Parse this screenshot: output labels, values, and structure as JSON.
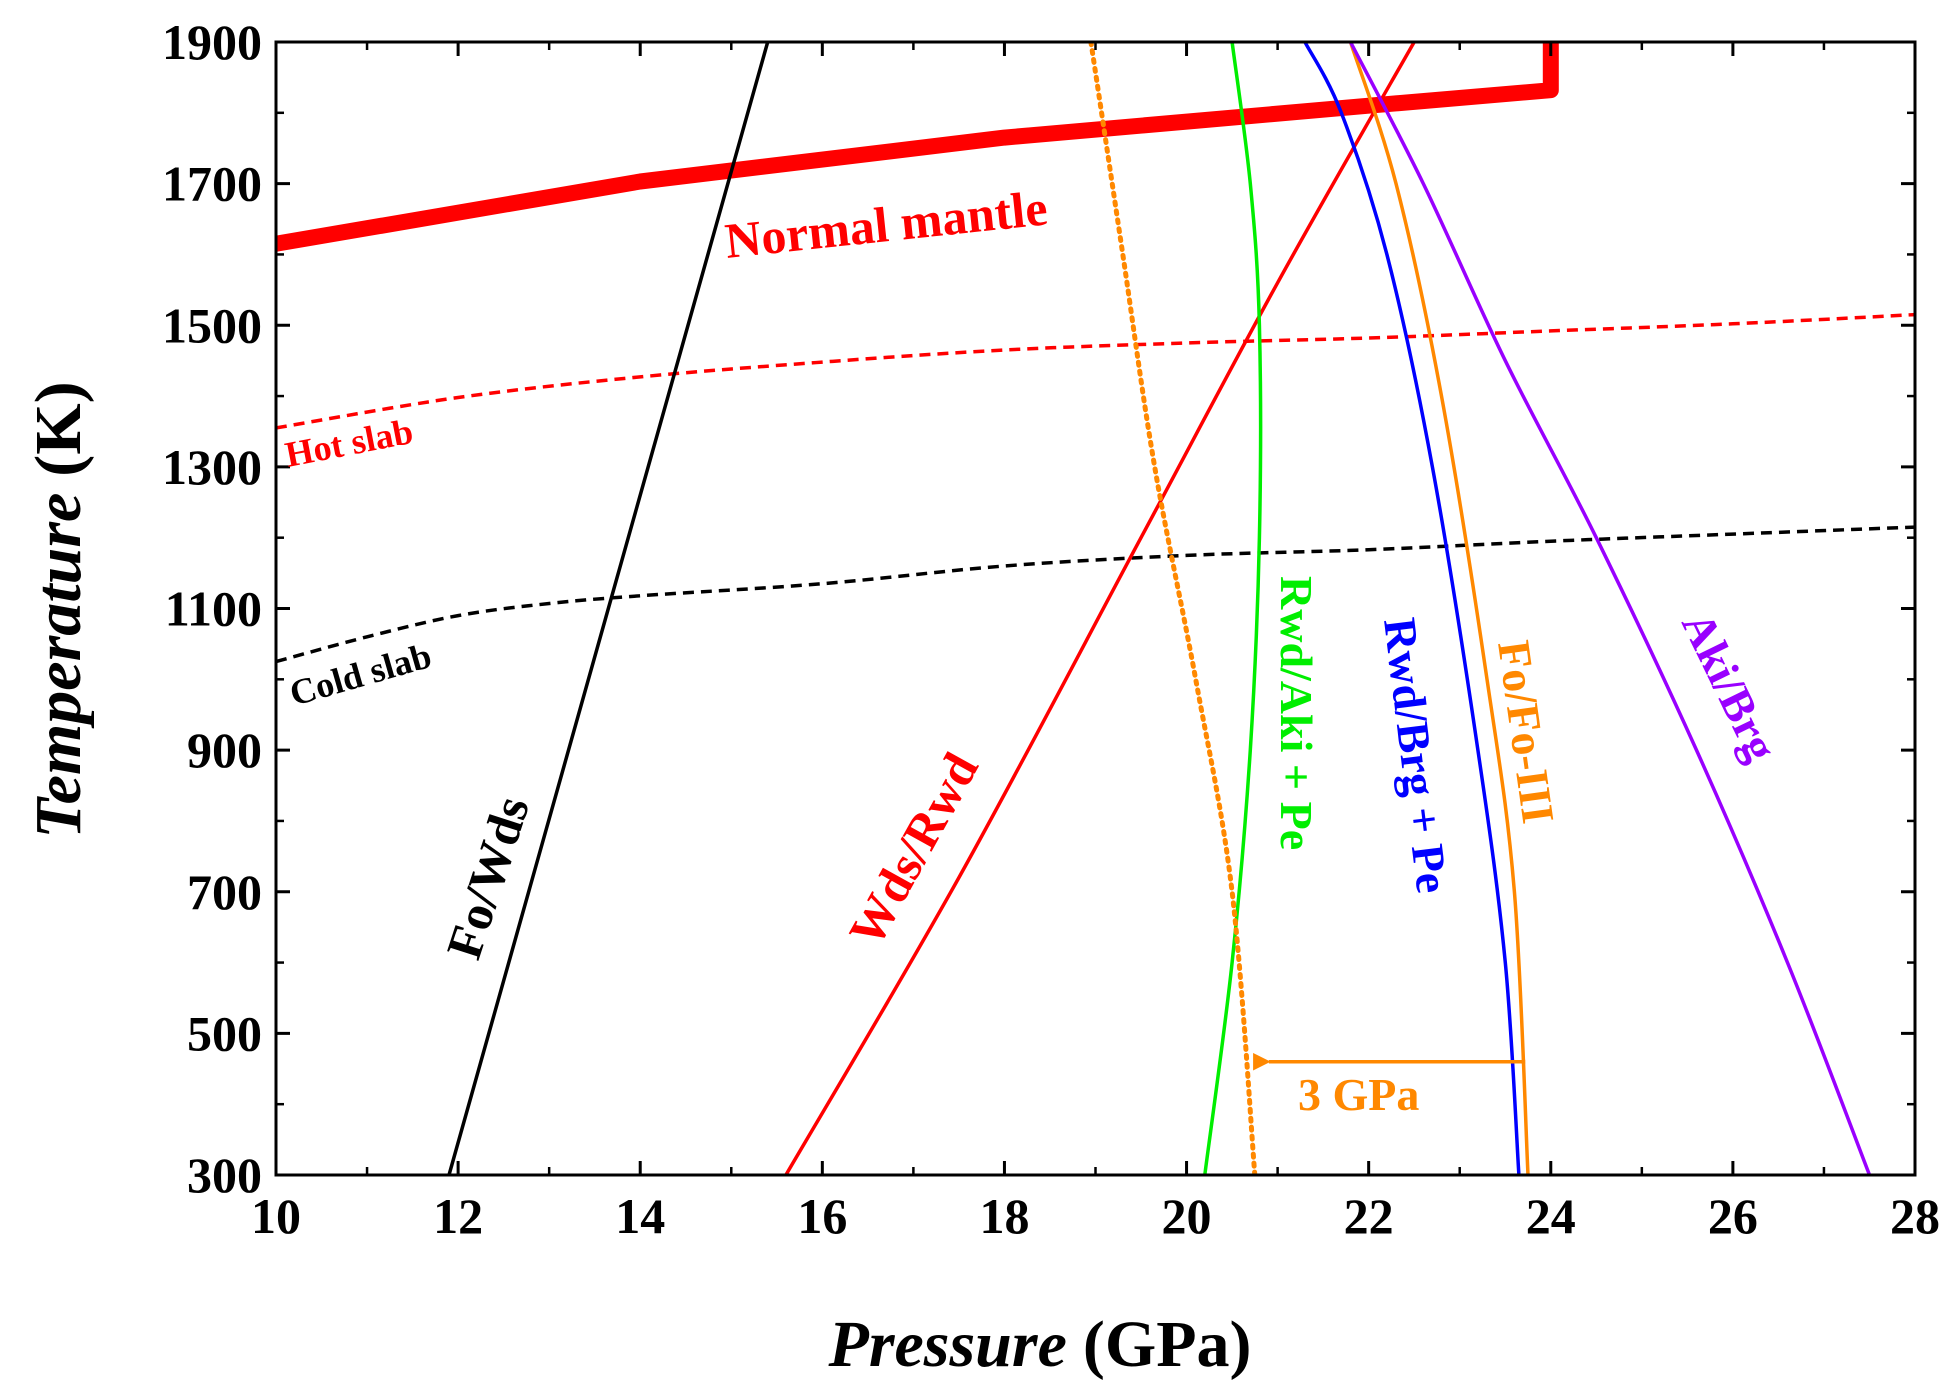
{
  "chart_data": {
    "type": "line",
    "title": "",
    "xlabel": {
      "italic": "Pressure",
      "unit": "(GPa)"
    },
    "ylabel": {
      "italic": "Temperature",
      "unit": "(K)"
    },
    "xlim": [
      10,
      28
    ],
    "ylim": [
      300,
      1900
    ],
    "xticks": [
      10,
      12,
      14,
      16,
      18,
      20,
      22,
      24,
      26,
      28
    ],
    "yticks": [
      300,
      500,
      700,
      900,
      1100,
      1300,
      1500,
      1700,
      1900
    ],
    "grid": false,
    "series": [
      {
        "name": "Normal mantle",
        "color": "#ff0000",
        "style": "thick",
        "points": [
          [
            10,
            1615
          ],
          [
            14,
            1703
          ],
          [
            18,
            1765
          ],
          [
            22,
            1810
          ],
          [
            24,
            1832
          ],
          [
            24,
            1900
          ]
        ]
      },
      {
        "name": "Hot slab",
        "color": "#ff0000",
        "style": "dashed",
        "points": [
          [
            10,
            1355
          ],
          [
            12,
            1398
          ],
          [
            14,
            1427
          ],
          [
            16,
            1448
          ],
          [
            18,
            1465
          ],
          [
            20,
            1475
          ],
          [
            22,
            1482
          ],
          [
            24,
            1492
          ],
          [
            26,
            1502
          ],
          [
            28,
            1515
          ]
        ]
      },
      {
        "name": "Cold slab",
        "color": "#000000",
        "style": "dashed",
        "points": [
          [
            10,
            1025
          ],
          [
            11,
            1060
          ],
          [
            12,
            1090
          ],
          [
            13,
            1107
          ],
          [
            14,
            1118
          ],
          [
            16,
            1135
          ],
          [
            18,
            1160
          ],
          [
            20,
            1175
          ],
          [
            22,
            1183
          ],
          [
            24,
            1195
          ],
          [
            26,
            1205
          ],
          [
            28,
            1215
          ]
        ]
      },
      {
        "name": "Fo/Wds",
        "color": "#000000",
        "style": "solid",
        "points": [
          [
            11.9,
            300
          ],
          [
            15.4,
            1900
          ]
        ]
      },
      {
        "name": "Wds/Rwd",
        "color": "#ff0000",
        "style": "solid",
        "points": [
          [
            15.6,
            300
          ],
          [
            17.5,
            720
          ],
          [
            19.5,
            1200
          ],
          [
            21,
            1560
          ],
          [
            22.5,
            1900
          ]
        ]
      },
      {
        "name": "Rwd/Aki + Pe",
        "color": "#00ee00",
        "style": "solid",
        "points": [
          [
            20.2,
            300
          ],
          [
            20.5,
            600
          ],
          [
            20.7,
            900
          ],
          [
            20.8,
            1200
          ],
          [
            20.8,
            1500
          ],
          [
            20.7,
            1700
          ],
          [
            20.5,
            1900
          ]
        ]
      },
      {
        "name": "Rwd/Brg + Pe",
        "color": "#0000ff",
        "style": "solid",
        "points": [
          [
            23.65,
            300
          ],
          [
            23.5,
            600
          ],
          [
            23.2,
            900
          ],
          [
            22.7,
            1300
          ],
          [
            22.2,
            1600
          ],
          [
            21.7,
            1800
          ],
          [
            21.3,
            1900
          ]
        ]
      },
      {
        "name": "Fo/Fo-III",
        "color": "#ff8800",
        "style": "solid",
        "points": [
          [
            23.75,
            300
          ],
          [
            23.6,
            700
          ],
          [
            23.3,
            1000
          ],
          [
            22.8,
            1400
          ],
          [
            22.3,
            1700
          ],
          [
            21.8,
            1900
          ]
        ]
      },
      {
        "name": "Aki/Brg",
        "color": "#9900ff",
        "style": "solid",
        "points": [
          [
            27.5,
            300
          ],
          [
            26.6,
            600
          ],
          [
            25.6,
            900
          ],
          [
            24.5,
            1200
          ],
          [
            23.5,
            1450
          ],
          [
            22.6,
            1700
          ],
          [
            21.8,
            1900
          ]
        ]
      },
      {
        "name": "Fo/Fo-III shifted",
        "color": "#ff8800",
        "style": "dotted",
        "points": [
          [
            20.75,
            300
          ],
          [
            20.5,
            700
          ],
          [
            20.1,
            1000
          ],
          [
            19.65,
            1300
          ],
          [
            19.3,
            1600
          ],
          [
            18.95,
            1900
          ]
        ]
      }
    ],
    "labels": {
      "normal_mantle": "Normal mantle",
      "hot_slab": "Hot slab",
      "cold_slab": "Cold slab",
      "fo_wds": "Fo/Wds",
      "wds_rwd": "Wds/Rwd",
      "rwd_aki": "Rwd/Aki + Pe",
      "rwd_brg": "Rwd/Brg + Pe",
      "fo_fo3": "Fo/Fo-III",
      "aki_brg": "Aki/Brg",
      "shift": "3 GPa"
    },
    "annotations": [
      {
        "type": "arrow",
        "from": [
          23.7,
          460
        ],
        "to": [
          20.75,
          460
        ],
        "color": "#ff8800",
        "text": "3 GPa"
      }
    ]
  }
}
